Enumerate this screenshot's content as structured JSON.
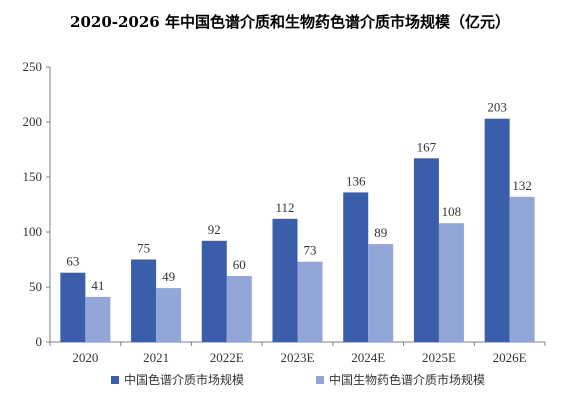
{
  "chart_data": {
    "type": "bar",
    "title": "2020-2026 年中国色谱介质和生物药色谱介质市场规模（亿元）",
    "categories": [
      "2020",
      "2021",
      "2022E",
      "2023E",
      "2024E",
      "2025E",
      "2026E"
    ],
    "series": [
      {
        "name": "中国色谱介质市场规模",
        "color": "#3b5eaa",
        "values": [
          63,
          75,
          92,
          112,
          136,
          167,
          203
        ]
      },
      {
        "name": "中国生物药色谱介质市场规模",
        "color": "#92a6d8",
        "values": [
          41,
          49,
          60,
          73,
          89,
          108,
          132
        ]
      }
    ],
    "yticks": [
      0,
      50,
      100,
      150,
      200,
      250
    ],
    "ylim": [
      0,
      250
    ],
    "grid": false,
    "legend_position": "bottom"
  }
}
